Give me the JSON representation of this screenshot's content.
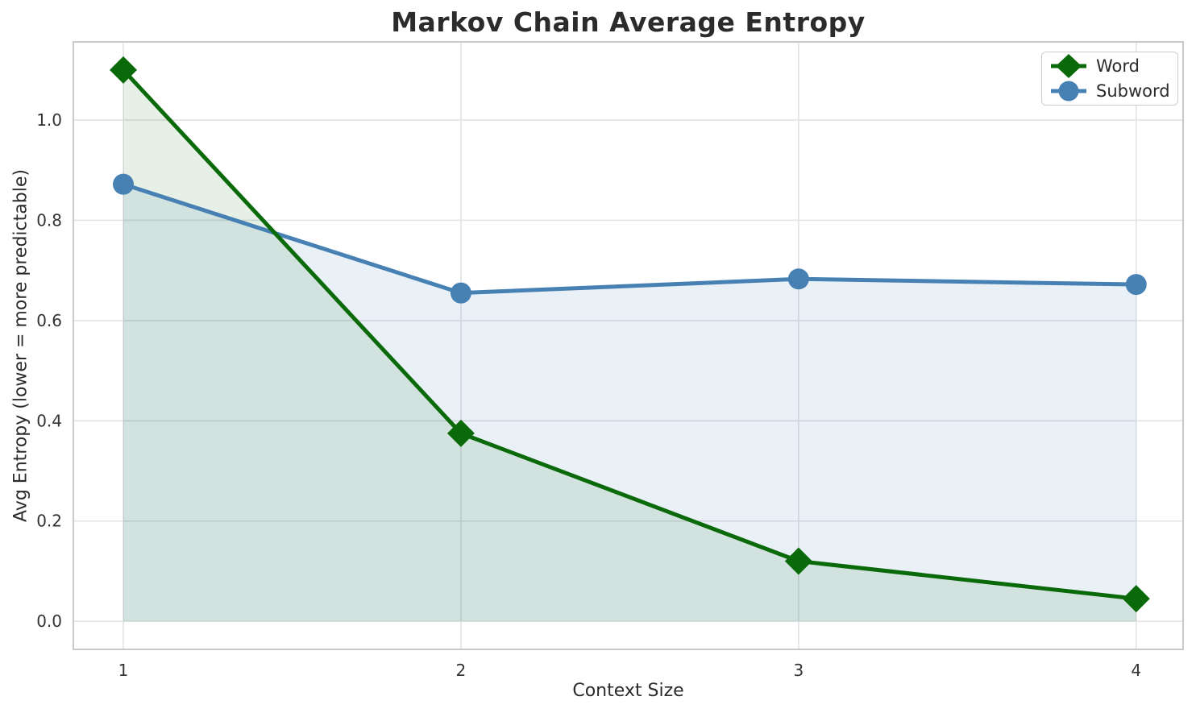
{
  "chart_data": {
    "type": "line",
    "title": "Markov Chain Average Entropy",
    "xlabel": "Context Size",
    "ylabel": "Avg Entropy (lower = more predictable)",
    "x": [
      1,
      2,
      3,
      4
    ],
    "series": [
      {
        "name": "Word",
        "values": [
          1.1,
          0.375,
          0.12,
          0.045
        ],
        "color": "#0a6a0a",
        "marker": "diamond",
        "fill": "rgba(10,106,10,0.10)"
      },
      {
        "name": "Subword",
        "values": [
          0.872,
          0.655,
          0.683,
          0.672
        ],
        "color": "#4781b4",
        "marker": "circle",
        "fill": "rgba(71,129,180,0.12)"
      }
    ],
    "xticks": [
      1,
      2,
      3,
      4
    ],
    "yticks": [
      0.0,
      0.2,
      0.4,
      0.6,
      0.8,
      1.0
    ],
    "xlim": [
      0.852,
      4.139
    ],
    "ylim": [
      -0.056,
      1.156
    ],
    "grid": true,
    "grid_color": "#e2e2e6",
    "spine_color": "#c9c9c9",
    "background": "#ffffff",
    "area_fill_baseline": 0,
    "legend_position": "top-right"
  }
}
